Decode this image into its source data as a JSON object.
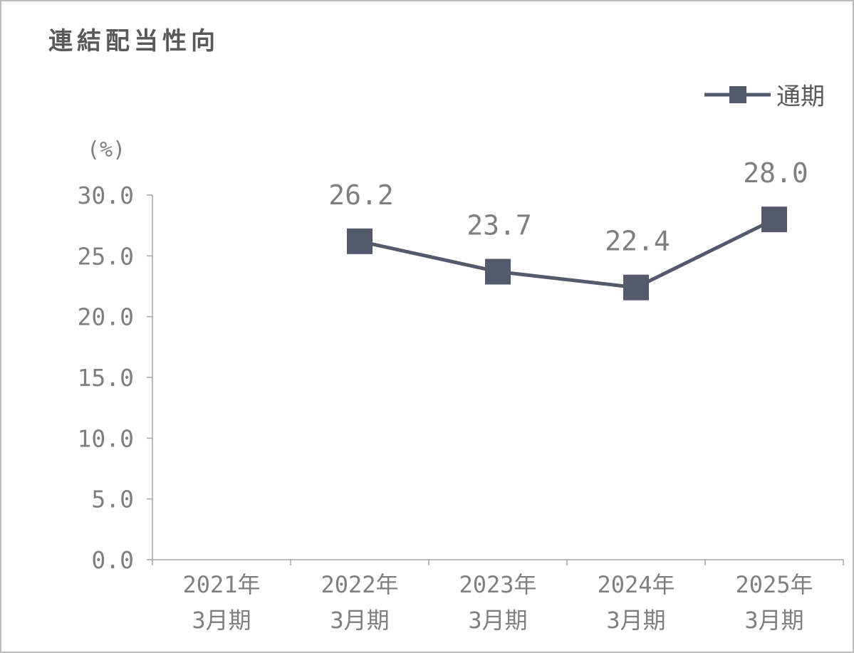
{
  "title": "連結配当性向",
  "chart_data": {
    "type": "line",
    "categories": [
      [
        "2021年",
        "3月期"
      ],
      [
        "2022年",
        "3月期"
      ],
      [
        "2023年",
        "3月期"
      ],
      [
        "2024年",
        "3月期"
      ],
      [
        "2025年",
        "3月期"
      ]
    ],
    "series": [
      {
        "name": "通期",
        "values": [
          null,
          26.2,
          23.7,
          22.4,
          28.0
        ],
        "labels": [
          null,
          "26.2",
          "23.7",
          "22.4",
          "28.0"
        ],
        "color": "#535a6b"
      }
    ],
    "ylabel": "(%)",
    "ylim": [
      0,
      30
    ],
    "yticks": [
      "0.0",
      "5.0",
      "10.0",
      "15.0",
      "20.0",
      "25.0",
      "30.0"
    ],
    "grid": false,
    "legend_position": "top-right"
  }
}
